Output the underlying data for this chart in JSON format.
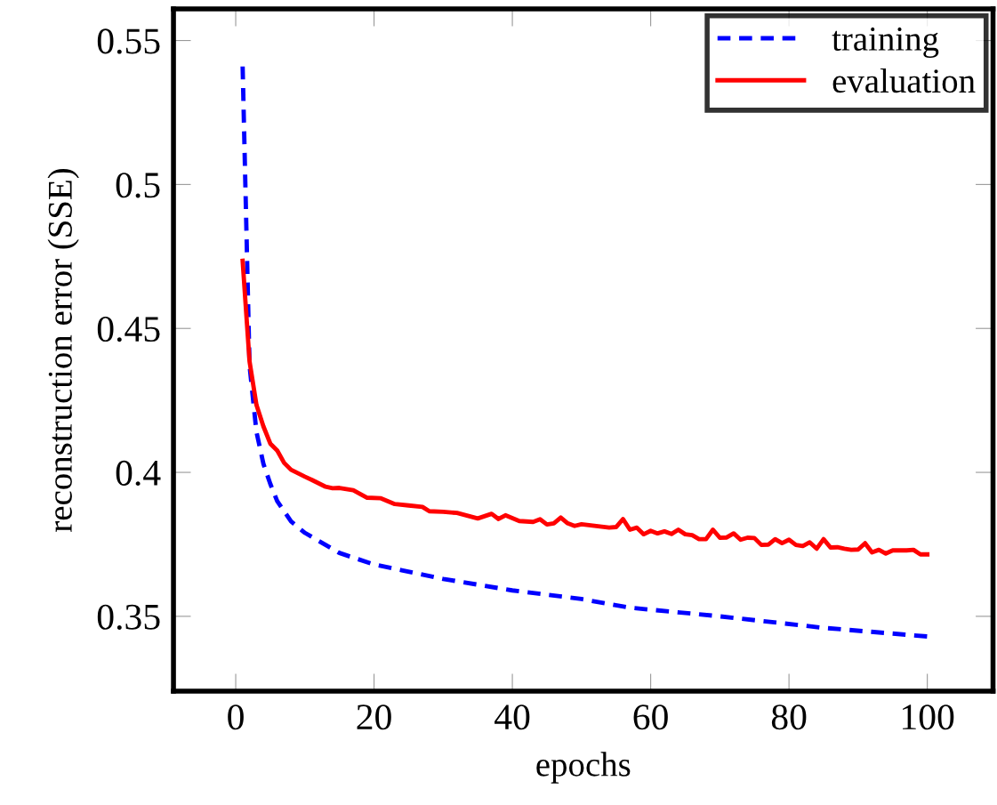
{
  "chart_data": {
    "type": "line",
    "xlabel": "epochs",
    "ylabel": "reconstruction error (SSE)",
    "xlim": [
      -9,
      109.5
    ],
    "ylim": [
      0.324,
      0.561
    ],
    "xticks": [
      0,
      20,
      40,
      60,
      80,
      100
    ],
    "yticks": [
      0.35,
      0.4,
      0.45,
      0.5,
      0.55
    ],
    "legend": "top right",
    "grid": false,
    "series": [
      {
        "name": "training",
        "color": "#0000ff",
        "line_style": "dashed",
        "x": [
          1,
          2,
          3,
          4,
          5,
          6,
          8,
          10,
          15,
          20,
          24,
          30,
          40,
          50,
          57,
          70,
          85,
          100
        ],
        "values": [
          0.541,
          0.437,
          0.414,
          0.403,
          0.396,
          0.39,
          0.383,
          0.379,
          0.372,
          0.368,
          0.366,
          0.363,
          0.359,
          0.356,
          0.353,
          0.35,
          0.346,
          0.343
        ]
      },
      {
        "name": "evaluation",
        "color": "#ff0000",
        "line_style": "solid",
        "x": [
          1,
          2,
          3,
          4,
          5,
          6,
          7,
          8,
          10,
          11,
          13,
          14,
          15,
          17,
          19,
          21,
          23,
          25,
          27,
          28,
          30,
          32,
          35,
          37,
          38,
          39,
          41,
          43,
          44,
          45,
          46,
          47,
          48,
          49,
          50,
          54,
          55,
          56,
          57,
          58,
          59,
          60,
          61,
          62,
          63,
          64,
          65,
          66,
          67,
          68,
          69,
          70,
          71,
          72,
          73,
          74,
          75,
          76,
          77,
          78,
          79,
          80,
          81,
          82,
          83,
          84,
          85,
          86,
          87,
          88,
          89,
          90,
          91,
          92,
          93,
          94,
          95,
          97,
          98,
          99,
          100
        ],
        "values": [
          0.4735,
          0.4385,
          0.4234,
          0.416,
          0.41,
          0.4076,
          0.4033,
          0.4009,
          0.3985,
          0.3974,
          0.395,
          0.3945,
          0.3946,
          0.3938,
          0.3912,
          0.391,
          0.389,
          0.3885,
          0.388,
          0.3865,
          0.3863,
          0.3859,
          0.384,
          0.3856,
          0.3838,
          0.3851,
          0.3831,
          0.3828,
          0.3837,
          0.3819,
          0.3823,
          0.3843,
          0.3823,
          0.3814,
          0.382,
          0.3808,
          0.381,
          0.3838,
          0.3801,
          0.3808,
          0.3785,
          0.3797,
          0.3788,
          0.3795,
          0.3786,
          0.3801,
          0.3785,
          0.3782,
          0.3768,
          0.3768,
          0.3801,
          0.3773,
          0.3774,
          0.3788,
          0.3766,
          0.3773,
          0.3772,
          0.3748,
          0.3749,
          0.3768,
          0.3754,
          0.3766,
          0.3748,
          0.3744,
          0.3757,
          0.3735,
          0.3768,
          0.3739,
          0.374,
          0.3735,
          0.3731,
          0.3732,
          0.3754,
          0.3722,
          0.3731,
          0.3718,
          0.3729,
          0.3729,
          0.3731,
          0.3715,
          0.3715
        ]
      }
    ]
  }
}
